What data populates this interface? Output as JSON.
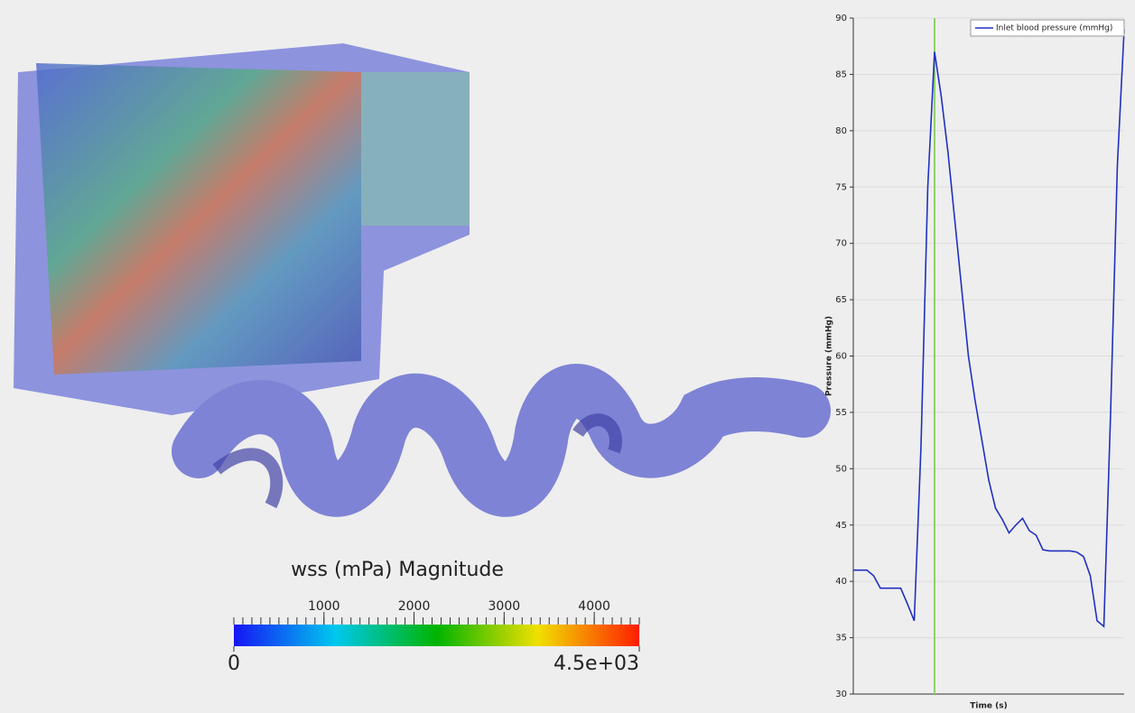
{
  "chart_data": [
    {
      "type": "colorbar",
      "title": "wss (mPa) Magnitude",
      "range": [
        {
          "value": 0,
          "label": "0"
        },
        {
          "value": 4500,
          "label": "4.5e+03"
        }
      ],
      "ticks": [
        1000,
        2000,
        3000,
        4000
      ],
      "colors": [
        "#1515f5",
        "#00c8ee",
        "#00b400",
        "#f0e000",
        "#ff1e00"
      ]
    },
    {
      "type": "line",
      "ylabel": "Pressure (mmHg)",
      "xlabel": "Time (s)",
      "ylim": [
        30,
        90
      ],
      "yticks": [
        30,
        35,
        40,
        45,
        50,
        55,
        60,
        65,
        70,
        75,
        80,
        85,
        90
      ],
      "grid": true,
      "legend": "top-right",
      "cursor_index": 12,
      "cursor_color": "#8fd16a",
      "series": [
        {
          "name": "Inlet blood pressure (mmHg)",
          "color": "#2030c0",
          "values": [
            41,
            41,
            41,
            40.5,
            39.4,
            39.4,
            39.4,
            39.4,
            38,
            36.5,
            52,
            75,
            87,
            83,
            78,
            72,
            66,
            60,
            56,
            52.5,
            49,
            46.5,
            45.5,
            44.3,
            45,
            45.6,
            44.5,
            44.1,
            42.8,
            42.7,
            42.7,
            42.7,
            42.7,
            42.6,
            42.2,
            40.5,
            36.5,
            36,
            55,
            77,
            89
          ]
        }
      ]
    }
  ]
}
